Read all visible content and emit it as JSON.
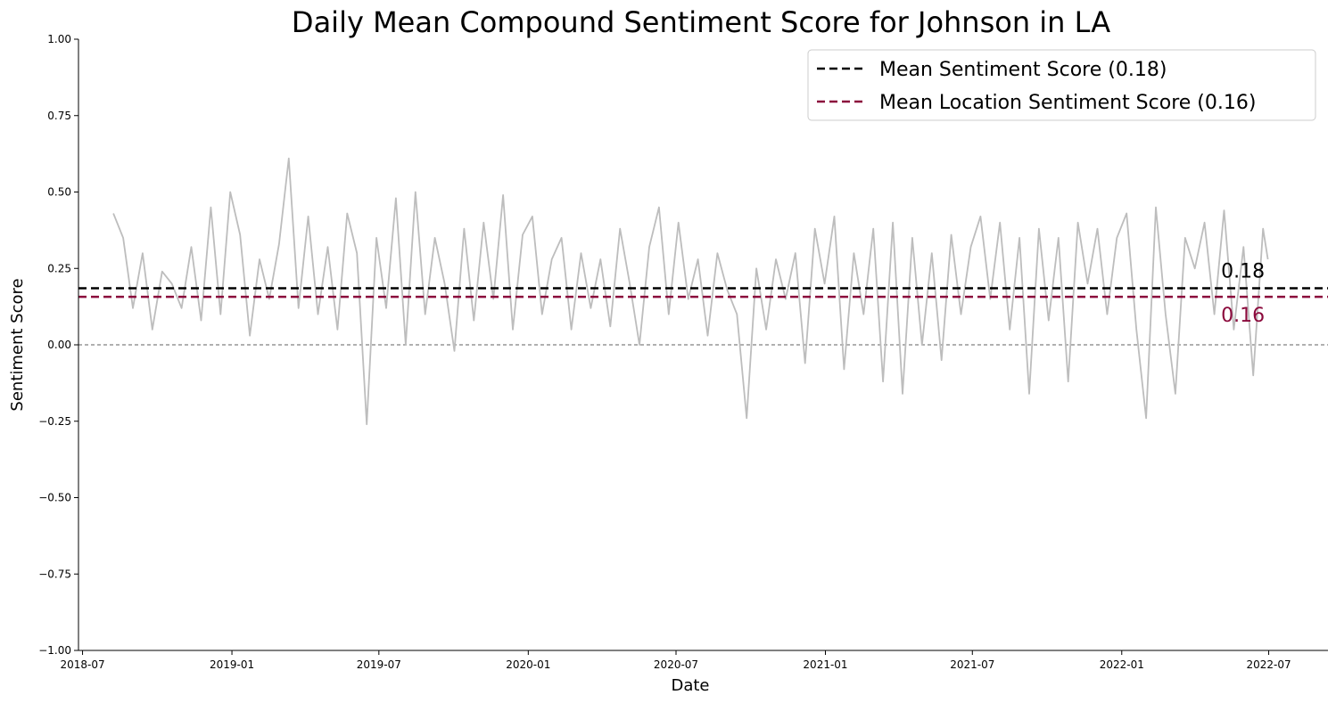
{
  "chart_data": {
    "type": "line",
    "title": "Daily Mean Compound Sentiment Score for Johnson in LA",
    "xlabel": "Date",
    "ylabel": "Sentiment Score",
    "x_range": [
      "2018-06-26",
      "2022-09-12"
    ],
    "ylim": [
      -1.0,
      1.0
    ],
    "y_ticks": [
      "1.00",
      "0.75",
      "0.50",
      "0.25",
      "0.00",
      "−0.25",
      "−0.50",
      "−0.75",
      "−1.00"
    ],
    "y_tick_values": [
      1.0,
      0.75,
      0.5,
      0.25,
      0.0,
      -0.25,
      -0.5,
      -0.75,
      -1.0
    ],
    "x_ticks": [
      "2018-07",
      "2019-01",
      "2019-07",
      "2020-01",
      "2020-07",
      "2021-01",
      "2021-07",
      "2022-01",
      "2022-07"
    ],
    "x_tick_dates": [
      "2018-07-01",
      "2019-01-01",
      "2019-07-01",
      "2020-01-01",
      "2020-07-01",
      "2021-01-01",
      "2021-07-01",
      "2022-01-01",
      "2022-07-01"
    ],
    "grid": false,
    "legend_position": "top-right",
    "colors": {
      "series": "#bdbdbd",
      "mean": "#000000",
      "location_mean": "#8b0a3c",
      "zero": "#808080"
    },
    "series": [
      {
        "name": "Daily mean compound sentiment",
        "x": [
          "2018-08-08",
          "2018-08-20",
          "2018-09-01",
          "2018-09-13",
          "2018-09-25",
          "2018-10-07",
          "2018-10-19",
          "2018-10-31",
          "2018-11-12",
          "2018-11-24",
          "2018-12-06",
          "2018-12-18",
          "2018-12-30",
          "2019-01-11",
          "2019-01-23",
          "2019-02-04",
          "2019-02-16",
          "2019-02-28",
          "2019-03-12",
          "2019-03-24",
          "2019-04-05",
          "2019-04-17",
          "2019-04-29",
          "2019-05-11",
          "2019-05-23",
          "2019-06-04",
          "2019-06-16",
          "2019-06-28",
          "2019-07-10",
          "2019-07-22",
          "2019-08-03",
          "2019-08-15",
          "2019-08-27",
          "2019-09-08",
          "2019-09-20",
          "2019-10-02",
          "2019-10-14",
          "2019-10-26",
          "2019-11-07",
          "2019-11-19",
          "2019-12-01",
          "2019-12-13",
          "2019-12-25",
          "2020-01-06",
          "2020-01-18",
          "2020-01-30",
          "2020-02-11",
          "2020-02-23",
          "2020-03-06",
          "2020-03-18",
          "2020-03-30",
          "2020-04-11",
          "2020-04-23",
          "2020-05-05",
          "2020-05-17",
          "2020-05-29",
          "2020-06-10",
          "2020-06-22",
          "2020-07-04",
          "2020-07-16",
          "2020-07-28",
          "2020-08-09",
          "2020-08-21",
          "2020-09-02",
          "2020-09-14",
          "2020-09-26",
          "2020-10-08",
          "2020-10-20",
          "2020-11-01",
          "2020-11-13",
          "2020-11-25",
          "2020-12-07",
          "2020-12-19",
          "2020-12-31",
          "2021-01-12",
          "2021-01-24",
          "2021-02-05",
          "2021-02-17",
          "2021-03-01",
          "2021-03-13",
          "2021-03-25",
          "2021-04-06",
          "2021-04-18",
          "2021-04-30",
          "2021-05-12",
          "2021-05-24",
          "2021-06-05",
          "2021-06-17",
          "2021-06-29",
          "2021-07-11",
          "2021-07-23",
          "2021-08-04",
          "2021-08-16",
          "2021-08-28",
          "2021-09-09",
          "2021-09-21",
          "2021-10-03",
          "2021-10-15",
          "2021-10-27",
          "2021-11-08",
          "2021-11-20",
          "2021-12-02",
          "2021-12-14",
          "2021-12-26",
          "2022-01-07",
          "2022-01-19",
          "2022-01-31",
          "2022-02-12",
          "2022-02-24",
          "2022-03-08",
          "2022-03-20",
          "2022-04-01",
          "2022-04-13",
          "2022-04-25",
          "2022-05-07",
          "2022-05-19",
          "2022-05-31",
          "2022-06-12",
          "2022-06-24",
          "2022-06-30"
        ],
        "values": [
          0.43,
          0.35,
          0.12,
          0.3,
          0.05,
          0.24,
          0.2,
          0.12,
          0.32,
          0.08,
          0.45,
          0.1,
          0.5,
          0.36,
          0.03,
          0.28,
          0.15,
          0.33,
          0.61,
          0.12,
          0.42,
          0.1,
          0.32,
          0.05,
          0.43,
          0.3,
          -0.26,
          0.35,
          0.12,
          0.48,
          0.0,
          0.5,
          0.1,
          0.35,
          0.2,
          -0.02,
          0.38,
          0.08,
          0.4,
          0.15,
          0.49,
          0.05,
          0.36,
          0.42,
          0.1,
          0.28,
          0.35,
          0.05,
          0.3,
          0.12,
          0.28,
          0.06,
          0.38,
          0.2,
          0.0,
          0.32,
          0.45,
          0.1,
          0.4,
          0.15,
          0.28,
          0.03,
          0.3,
          0.18,
          0.1,
          -0.24,
          0.25,
          0.05,
          0.28,
          0.15,
          0.3,
          -0.06,
          0.38,
          0.2,
          0.42,
          -0.08,
          0.3,
          0.1,
          0.38,
          -0.12,
          0.4,
          -0.16,
          0.35,
          0.0,
          0.3,
          -0.05,
          0.36,
          0.1,
          0.32,
          0.42,
          0.15,
          0.4,
          0.05,
          0.35,
          -0.16,
          0.38,
          0.08,
          0.35,
          -0.12,
          0.4,
          0.2,
          0.38,
          0.1,
          0.35,
          0.43,
          0.05,
          -0.24,
          0.45,
          0.1,
          -0.16,
          0.35,
          0.25,
          0.4,
          0.1,
          0.44,
          0.05,
          0.32,
          -0.1,
          0.38,
          0.28
        ]
      }
    ],
    "reference_lines": [
      {
        "label": "Mean Sentiment Score (0.18)",
        "value": 0.185,
        "annotation": "0.18",
        "color": "#000000"
      },
      {
        "label": "Mean Location Sentiment Score (0.16)",
        "value": 0.157,
        "annotation": "0.16",
        "color": "#8b0a3c"
      }
    ],
    "zero_line": 0.0
  }
}
